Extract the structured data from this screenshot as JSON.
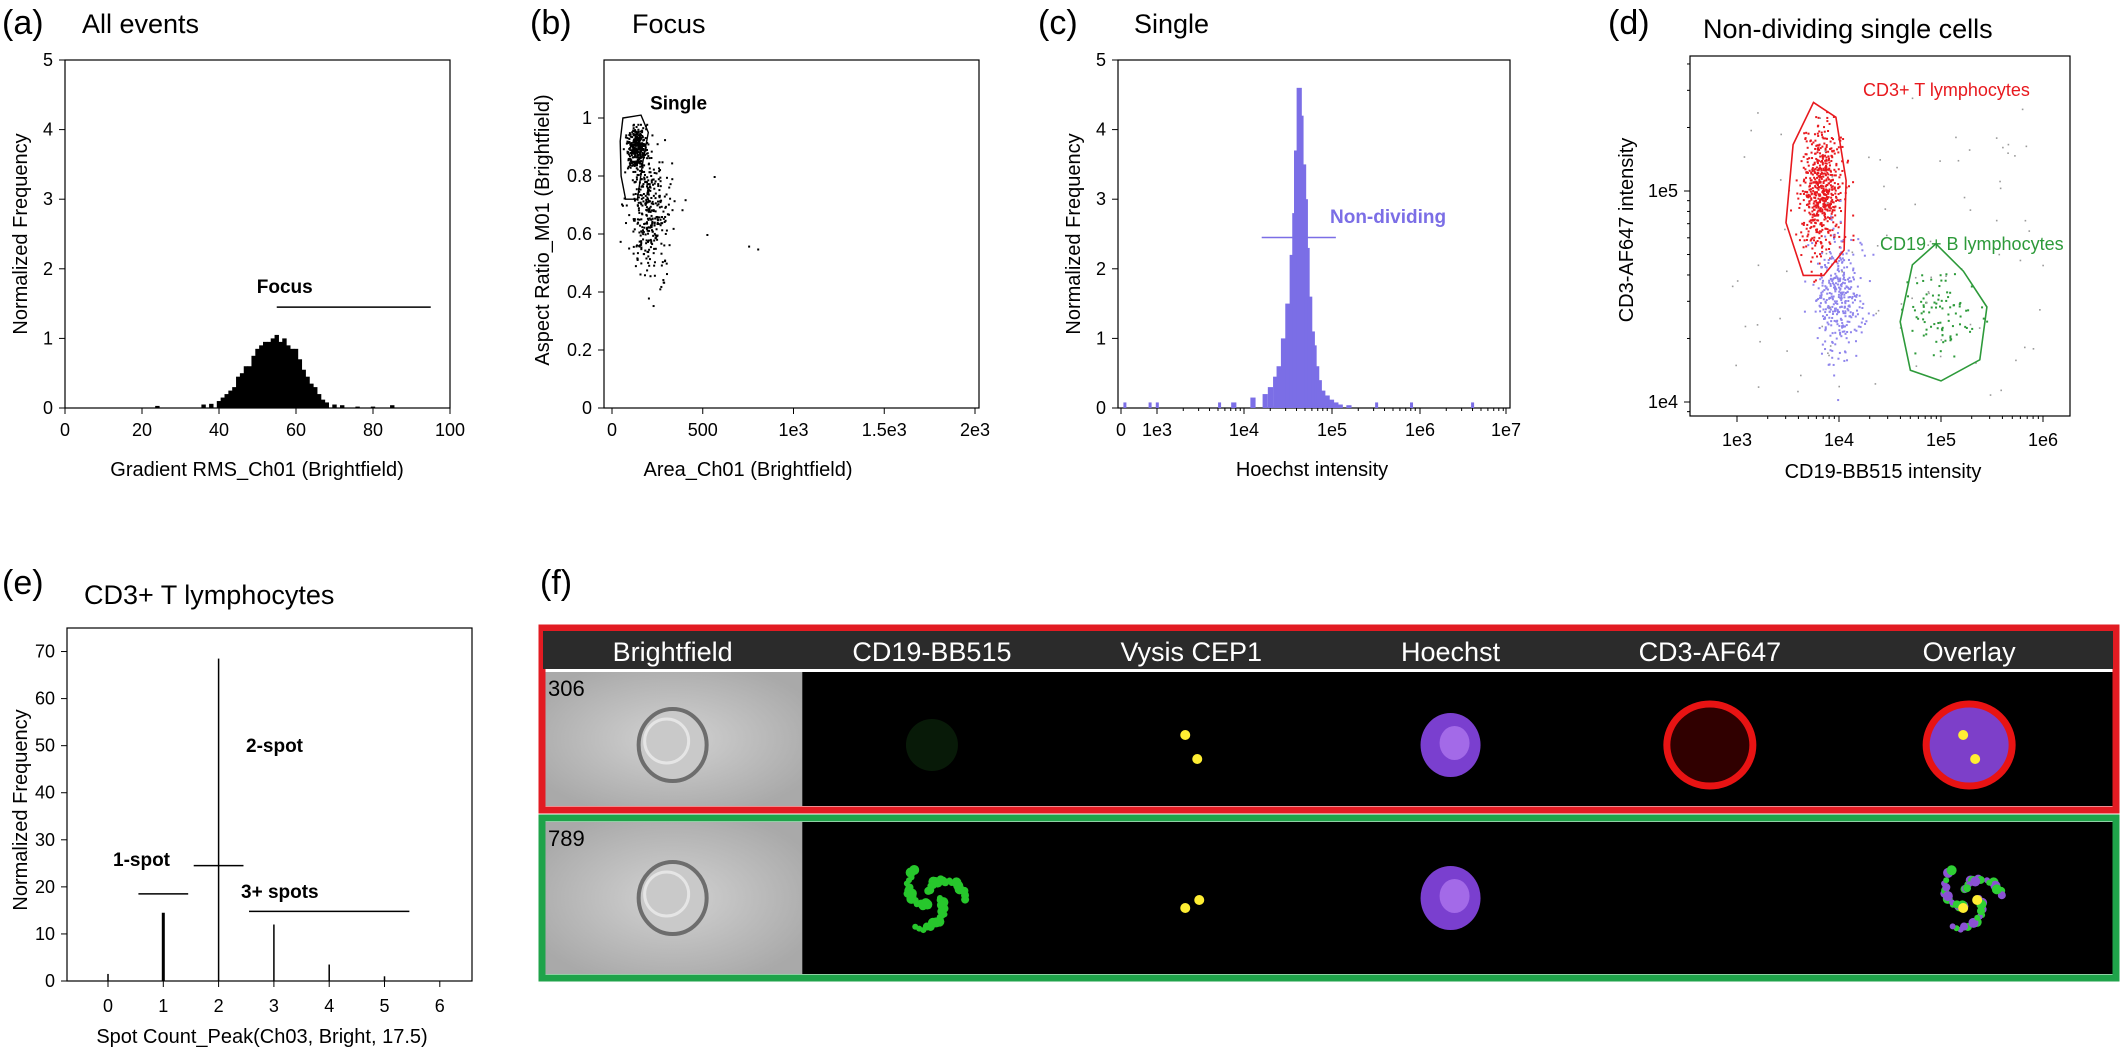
{
  "chart_data": [
    {
      "panel": "(a)",
      "type": "bar",
      "title": "All events",
      "xlabel": "Gradient RMS_Ch01 (Brightfield)",
      "ylabel": "Normalized Frequency",
      "xlim": [
        0,
        100
      ],
      "ylim": [
        0,
        5
      ],
      "x_ticks": [
        "0",
        "20",
        "40",
        "60",
        "80",
        "100"
      ],
      "y_ticks": [
        "0",
        "1",
        "2",
        "3",
        "4",
        "5"
      ],
      "x": [
        24,
        36,
        38,
        40,
        41,
        42,
        43,
        44,
        45,
        46,
        47,
        48,
        49,
        50,
        51,
        52,
        53,
        54,
        55,
        56,
        57,
        58,
        59,
        60,
        61,
        62,
        63,
        64,
        65,
        66,
        67,
        68,
        70,
        72,
        76,
        80,
        85
      ],
      "values": [
        0.03,
        0.05,
        0.06,
        0.1,
        0.15,
        0.2,
        0.25,
        0.3,
        0.45,
        0.5,
        0.6,
        0.6,
        0.75,
        0.85,
        0.9,
        0.95,
        0.95,
        1.0,
        1.05,
        0.95,
        1.0,
        0.9,
        0.85,
        0.85,
        0.7,
        0.55,
        0.45,
        0.35,
        0.3,
        0.2,
        0.12,
        0.08,
        0.05,
        0.04,
        0.02,
        0.02,
        0.04
      ],
      "gates": [
        {
          "label": "Focus",
          "x_range": [
            55,
            95
          ],
          "y": 1.45
        }
      ]
    },
    {
      "panel": "(b)",
      "type": "scatter",
      "title": "Focus",
      "xlabel": "Area_Ch01 (Brightfield)",
      "ylabel": "Aspect Ratio_M01 (Brightfield)",
      "xlim": [
        0,
        2000
      ],
      "ylim": [
        0,
        1.2
      ],
      "x_ticks": [
        [
          "0",
          0
        ],
        [
          "500",
          500
        ],
        [
          "1e3",
          1000
        ],
        [
          "1.5e3",
          1500
        ],
        [
          "2e3",
          2000
        ]
      ],
      "y_ticks": [
        [
          "0",
          0
        ],
        [
          "0.2",
          0.2
        ],
        [
          "0.4",
          0.4
        ],
        [
          "0.6",
          0.6
        ],
        [
          "0.8",
          0.8
        ],
        [
          "1",
          1.0
        ]
      ],
      "gates": [
        {
          "label": "Single",
          "polygon": [
            [
              60,
              1.0
            ],
            [
              160,
              1.01
            ],
            [
              200,
              0.95
            ],
            [
              170,
              0.85
            ],
            [
              140,
              0.72
            ],
            [
              75,
              0.72
            ],
            [
              50,
              0.8
            ],
            [
              45,
              0.92
            ]
          ]
        }
      ],
      "point_clusters": [
        {
          "center": [
            130,
            0.9
          ],
          "spread": [
            25,
            0.04
          ],
          "count": 280
        },
        {
          "center": [
            200,
            0.68
          ],
          "spread": [
            60,
            0.12
          ],
          "count": 360
        }
      ],
      "outliers": [
        [
          750,
          0.56
        ],
        [
          800,
          0.55
        ],
        [
          560,
          0.8
        ],
        [
          400,
          0.72
        ],
        [
          520,
          0.6
        ]
      ]
    },
    {
      "panel": "(c)",
      "type": "bar",
      "title": "Single",
      "xlabel": "Hoechst intensity",
      "ylabel": "Normalized Frequency",
      "x_scale": "log",
      "ylim": [
        0,
        5
      ],
      "x_ticks": [
        [
          "0",
          0
        ],
        [
          "1e3",
          3
        ],
        [
          "1e4",
          4
        ],
        [
          "1e5",
          5
        ],
        [
          "1e6",
          6
        ],
        [
          "1e7",
          7
        ]
      ],
      "y_ticks": [
        "0",
        "1",
        "2",
        "3",
        "4",
        "5"
      ],
      "x_log10": [
        3.88,
        4.1,
        4.24,
        4.3,
        4.36,
        4.4,
        4.45,
        4.5,
        4.55,
        4.58,
        4.6,
        4.63,
        4.65,
        4.68,
        4.7,
        4.72,
        4.75,
        4.78,
        4.8,
        4.83,
        4.86,
        4.9,
        4.95,
        5.0,
        5.05,
        5.1,
        5.2
      ],
      "values": [
        0.08,
        0.15,
        0.2,
        0.3,
        0.45,
        0.6,
        1.0,
        1.5,
        2.2,
        2.8,
        3.7,
        4.6,
        4.2,
        3.5,
        3.0,
        2.3,
        1.6,
        1.1,
        0.9,
        0.6,
        0.4,
        0.25,
        0.18,
        0.12,
        0.08,
        0.05,
        0.04
      ],
      "color": "#7b6ee6",
      "gates": [
        {
          "label": "Non-dividing",
          "x_range_log10": [
            4.2,
            5.05
          ],
          "y": 2.45
        }
      ]
    },
    {
      "panel": "(d)",
      "type": "scatter",
      "title": "Non-dividing single cells",
      "xlabel": "CD19-BB515 intensity",
      "ylabel": "CD3-AF647 intensity",
      "x_scale": "log",
      "y_scale": "log",
      "x_ticks": [
        [
          "1e3",
          3
        ],
        [
          "1e4",
          4
        ],
        [
          "1e5",
          5
        ],
        [
          "1e6",
          6
        ]
      ],
      "y_ticks": [
        [
          "1e4",
          4
        ],
        [
          "1e5",
          5
        ]
      ],
      "series": [
        {
          "name": "CD3+ T lymphocytes",
          "color": "#e8191e",
          "center_log10": [
            3.82,
            5.0
          ],
          "spread_log10": [
            0.1,
            0.15
          ],
          "count": 600
        },
        {
          "name": "CD19 + B lymphocytes",
          "color": "#2d9a3a",
          "center_log10": [
            5.0,
            4.42
          ],
          "spread_log10": [
            0.18,
            0.09
          ],
          "count": 90
        },
        {
          "name": "",
          "color": "#8f85ec",
          "center_log10": [
            4.0,
            4.5
          ],
          "spread_log10": [
            0.12,
            0.15
          ],
          "count": 350
        }
      ],
      "gates": [
        {
          "label": "CD3+ T lymphocytes",
          "color": "#e8191e",
          "polygon_log10": [
            [
              3.55,
              5.22
            ],
            [
              3.75,
              5.42
            ],
            [
              3.97,
              5.35
            ],
            [
              4.07,
              5.05
            ],
            [
              4.05,
              4.72
            ],
            [
              3.85,
              4.6
            ],
            [
              3.65,
              4.6
            ],
            [
              3.48,
              4.85
            ]
          ]
        },
        {
          "label": "CD19 + B lymphocytes",
          "color": "#2d9a3a",
          "polygon_log10": [
            [
              4.72,
              4.65
            ],
            [
              4.95,
              4.75
            ],
            [
              5.22,
              4.62
            ],
            [
              5.45,
              4.45
            ],
            [
              5.38,
              4.2
            ],
            [
              5.0,
              4.1
            ],
            [
              4.7,
              4.15
            ],
            [
              4.6,
              4.38
            ]
          ]
        }
      ]
    },
    {
      "panel": "(e)",
      "type": "bar",
      "title": "CD3+ T lymphocytes",
      "xlabel": "Spot Count_Peak(Ch03, Bright, 17.5)",
      "ylabel": "Normalized Frequency",
      "xlim": [
        -0.7,
        6.7
      ],
      "ylim": [
        0,
        75
      ],
      "x_ticks": [
        "0",
        "1",
        "2",
        "3",
        "4",
        "5",
        "6"
      ],
      "y_ticks": [
        "0",
        "10",
        "20",
        "30",
        "40",
        "50",
        "60",
        "70"
      ],
      "x": [
        0,
        1,
        2,
        3,
        4,
        5
      ],
      "values": [
        1.5,
        14.5,
        68.5,
        12,
        3.5,
        1
      ],
      "gates": [
        {
          "label": "1-spot",
          "x_range": [
            0.55,
            1.45
          ],
          "y": 18.5
        },
        {
          "label": "2-spot",
          "x_range": [
            1.55,
            2.45
          ],
          "y": 24.5
        },
        {
          "label": "3+ spots",
          "x_range": [
            2.55,
            5.45
          ],
          "y": 14.8
        }
      ]
    }
  ],
  "image_gallery": {
    "panel": "(f)",
    "columns": [
      "Brightfield",
      "CD19-BB515",
      "Vysis CEP1",
      "Hoechst",
      "CD3-AF647",
      "Overlay"
    ],
    "rows": [
      {
        "id": "306",
        "frame_color": "#e21b22"
      },
      {
        "id": "789",
        "frame_color": "#1fa34a"
      }
    ]
  }
}
